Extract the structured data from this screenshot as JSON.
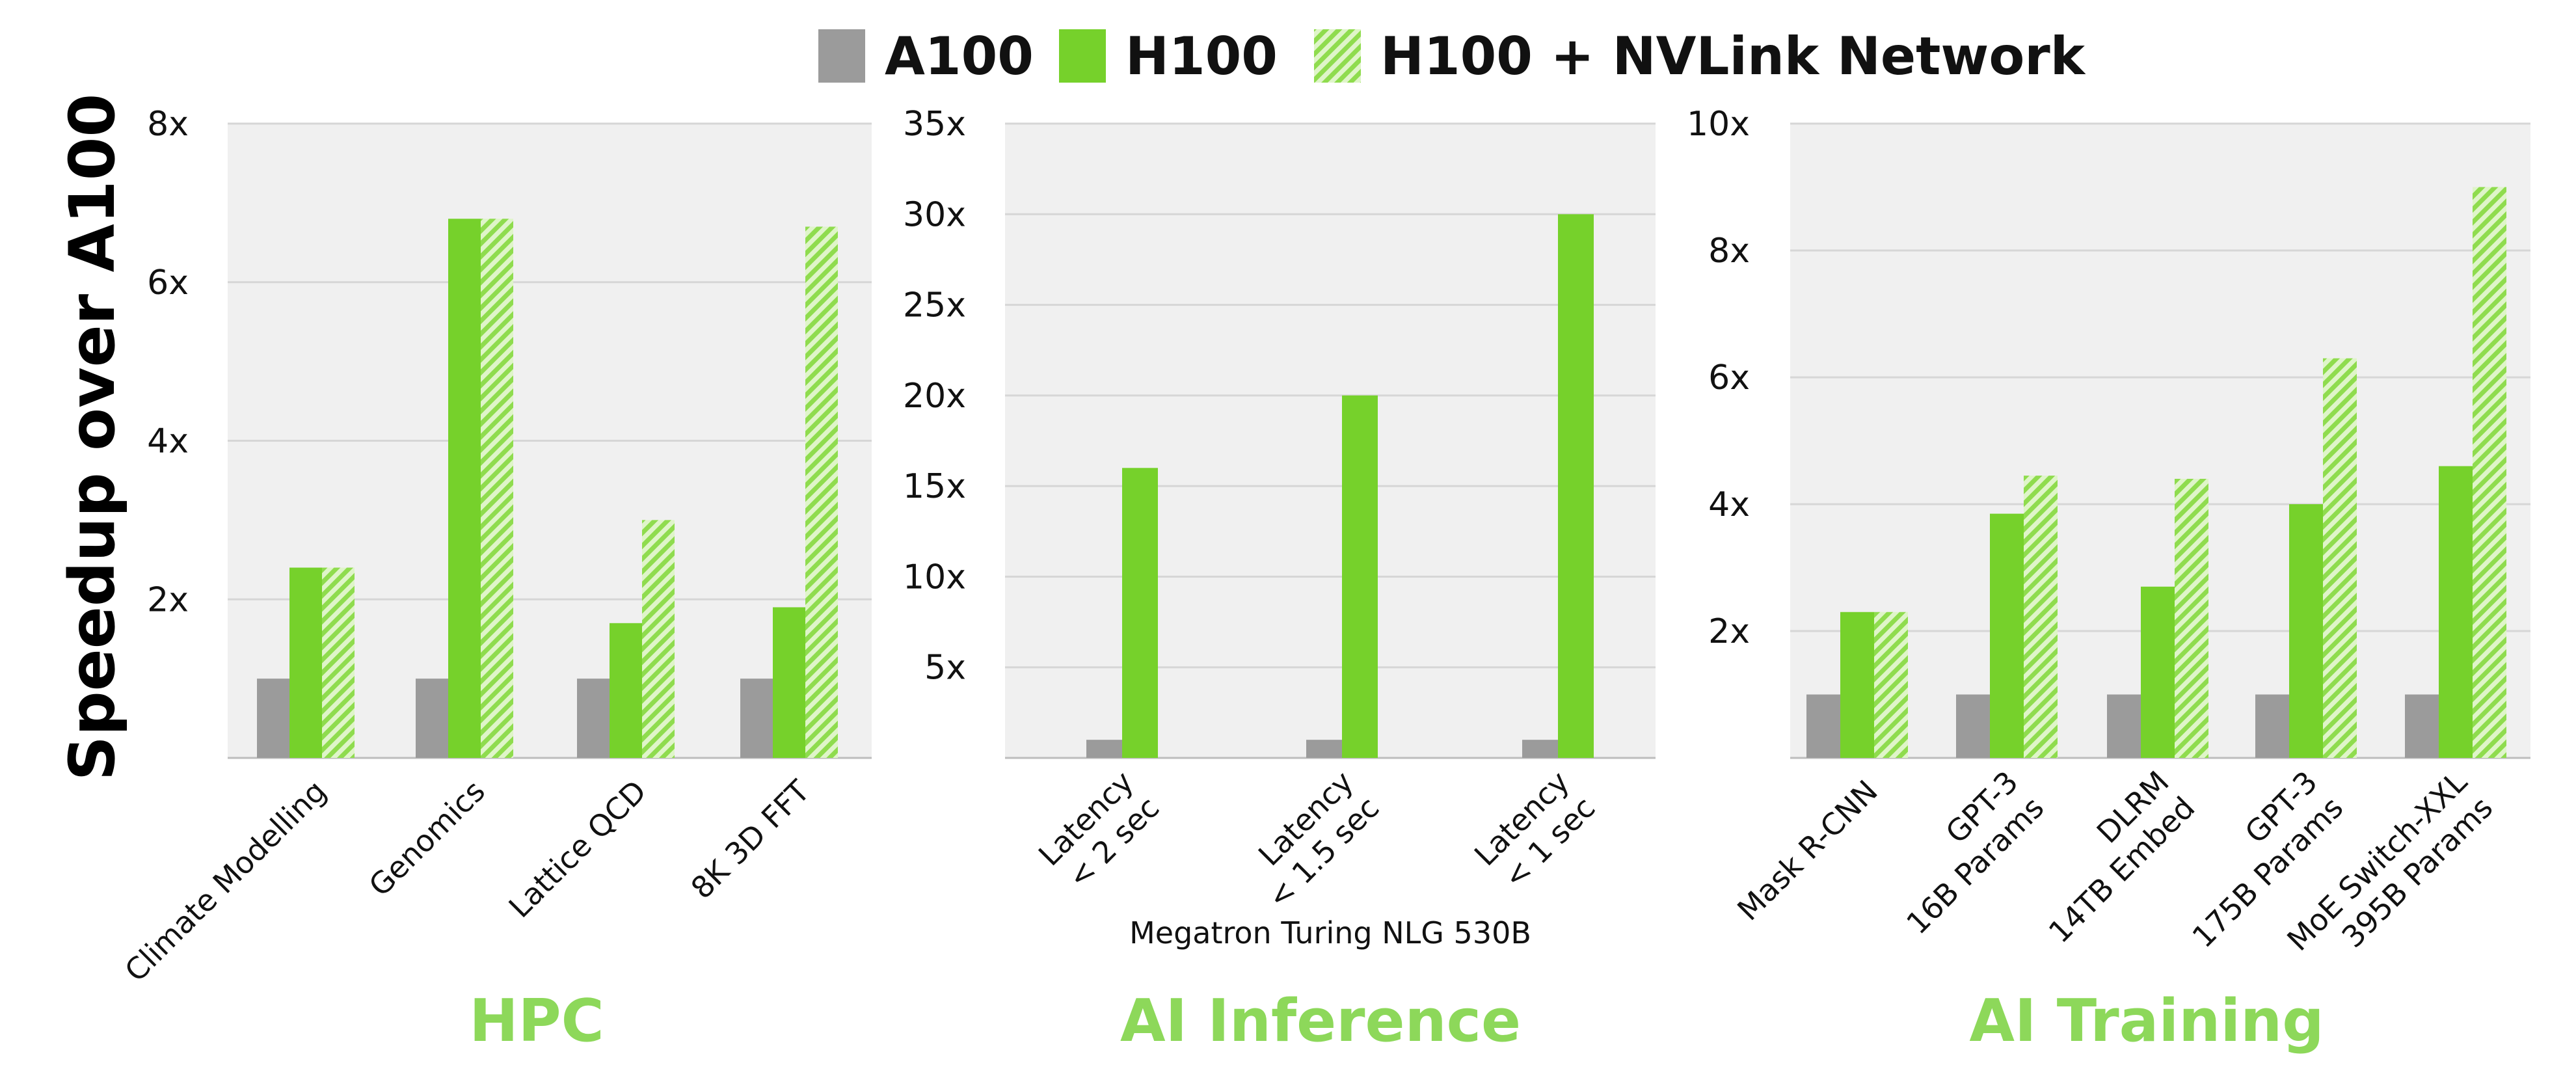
{
  "y_axis_label": "Speedup over A100",
  "colors": {
    "a100": "#9b9b9b",
    "h100": "#76d12b",
    "nvlink_hatch": "#9ee05c",
    "panel_bg": "#f0f0f0",
    "grid": "#d6d6d6",
    "group_label": "#8dd85a"
  },
  "legend": [
    {
      "name": "A100",
      "style": "a100"
    },
    {
      "name": "H100",
      "style": "h100"
    },
    {
      "name": "H100 + NVLink Network",
      "style": "nvlink"
    }
  ],
  "chart_data": [
    {
      "type": "bar",
      "group_title": "HPC",
      "subtitle": "",
      "ylim": [
        0,
        8
      ],
      "yticks": [
        2,
        4,
        6,
        8
      ],
      "ytick_labels": [
        "2x",
        "4x",
        "6x",
        "8x"
      ],
      "categories": [
        [
          "Climate Modelling"
        ],
        [
          "Genomics"
        ],
        [
          "Lattice QCD"
        ],
        [
          "8K 3D FFT"
        ]
      ],
      "series": [
        {
          "name": "A100",
          "values": [
            1.0,
            1.0,
            1.0,
            1.0
          ]
        },
        {
          "name": "H100",
          "values": [
            2.4,
            6.8,
            1.7,
            1.9
          ]
        },
        {
          "name": "H100 + NVLink Network",
          "values": [
            2.4,
            6.8,
            3.0,
            6.7
          ]
        }
      ]
    },
    {
      "type": "bar",
      "group_title": "AI Inference",
      "subtitle": "Megatron Turing NLG 530B",
      "ylim": [
        0,
        35
      ],
      "yticks": [
        5,
        10,
        15,
        20,
        25,
        30,
        35
      ],
      "ytick_labels": [
        "5x",
        "10x",
        "15x",
        "20x",
        "25x",
        "30x",
        "35x"
      ],
      "categories": [
        [
          "Latency",
          "< 2 sec"
        ],
        [
          "Latency",
          "< 1.5 sec"
        ],
        [
          "Latency",
          "< 1 sec"
        ]
      ],
      "series": [
        {
          "name": "A100",
          "values": [
            1,
            1,
            1
          ]
        },
        {
          "name": "H100",
          "values": [
            16,
            20,
            30
          ]
        }
      ]
    },
    {
      "type": "bar",
      "group_title": "AI Training",
      "subtitle": "",
      "ylim": [
        0,
        10
      ],
      "yticks": [
        2,
        4,
        6,
        8,
        10
      ],
      "ytick_labels": [
        "2x",
        "4x",
        "6x",
        "8x",
        "10x"
      ],
      "categories": [
        [
          "Mask R-CNN"
        ],
        [
          "GPT-3",
          "16B Params"
        ],
        [
          "DLRM",
          "14TB Embed"
        ],
        [
          "GPT-3",
          "175B Params"
        ],
        [
          "MoE Switch-XXL",
          "395B Params"
        ]
      ],
      "series": [
        {
          "name": "A100",
          "values": [
            1.0,
            1.0,
            1.0,
            1.0,
            1.0
          ]
        },
        {
          "name": "H100",
          "values": [
            2.3,
            3.85,
            2.7,
            4.0,
            4.6
          ]
        },
        {
          "name": "H100 + NVLink Network",
          "values": [
            2.3,
            4.45,
            4.4,
            6.3,
            9.0
          ]
        }
      ]
    }
  ]
}
